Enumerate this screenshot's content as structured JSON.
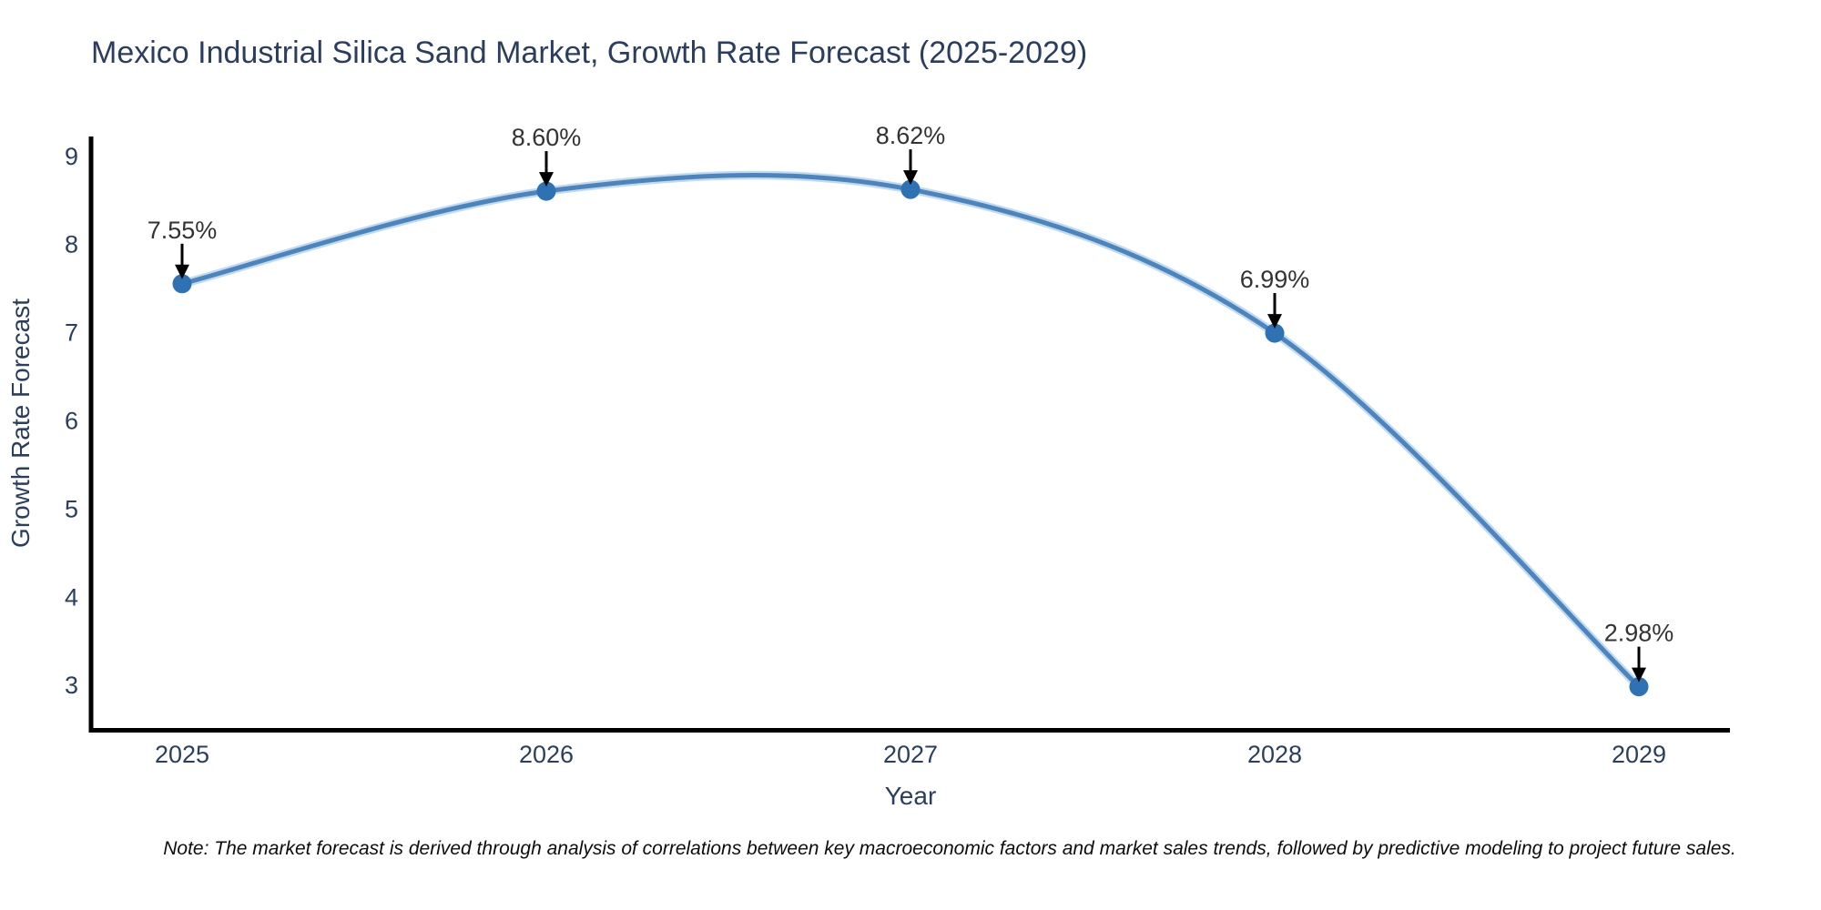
{
  "note": "Note: The market forecast is derived through analysis of correlations between key macroeconomic factors and market sales trends, followed by predictive modeling to project future sales.",
  "chart_data": {
    "type": "line",
    "title": "Mexico Industrial Silica Sand Market, Growth Rate Forecast (2025-2029)",
    "xlabel": "Year",
    "ylabel": "Growth Rate Forecast",
    "x": [
      2025,
      2026,
      2027,
      2028,
      2029
    ],
    "values": [
      7.55,
      8.6,
      8.62,
      6.99,
      2.98
    ],
    "point_labels": [
      "7.55%",
      "8.60%",
      "8.62%",
      "6.99%",
      "2.98%"
    ],
    "x_tick_labels": [
      "2025",
      "2026",
      "2027",
      "2028",
      "2029"
    ],
    "y_ticks": [
      3,
      4,
      5,
      6,
      7,
      8,
      9
    ],
    "xlim": [
      2024.75,
      2029.25
    ],
    "ylim": [
      2.46,
      9.22
    ],
    "grid": false,
    "legend": "none",
    "line_shape": "spline",
    "annotations_arrow": "down-arrow",
    "colors": {
      "line": "#4a85bf",
      "line_halo": "#b9d3ea",
      "marker": "#2e72b4",
      "arrow": "#000000",
      "axis": "#000000",
      "title_text": "#2a3f5f",
      "annotation_text": "#333333"
    }
  }
}
